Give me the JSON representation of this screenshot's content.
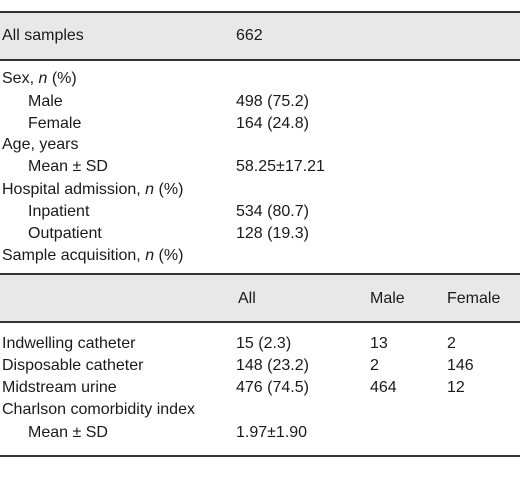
{
  "summary": {
    "label": "All samples",
    "value": "662"
  },
  "section1": {
    "sex_header": {
      "text": "Sex, ",
      "italic": "n",
      "rest": " (%)"
    },
    "male": {
      "label": "Male",
      "value": "498 (75.2)"
    },
    "female": {
      "label": "Female",
      "value": "164 (24.8)"
    },
    "age_header": "Age, years",
    "age_mean": {
      "label": "Mean ± SD",
      "value": "58.25±17.21"
    },
    "hosp_header": {
      "text": "Hospital admission, ",
      "italic": "n",
      "rest": " (%)"
    },
    "inpatient": {
      "label": "Inpatient",
      "value": "534 (80.7)"
    },
    "outpatient": {
      "label": "Outpatient",
      "value": "128 (19.3)"
    },
    "acq_header": {
      "text": "Sample acquisition, ",
      "italic": "n",
      "rest": " (%)"
    }
  },
  "section2": {
    "columns": [
      "All",
      "Male",
      "Female"
    ],
    "rows": [
      {
        "label": "Indwelling catheter",
        "all": "15 (2.3)",
        "male": "13",
        "female": "2"
      },
      {
        "label": "Disposable catheter",
        "all": "148 (23.2)",
        "male": "2",
        "female": "146"
      },
      {
        "label": "Midstream urine",
        "all": "476 (74.5)",
        "male": "464",
        "female": "12"
      }
    ],
    "cci_header": "Charlson comorbidity index",
    "cci_mean": {
      "label": "Mean ± SD",
      "value": "1.97±1.90"
    }
  }
}
